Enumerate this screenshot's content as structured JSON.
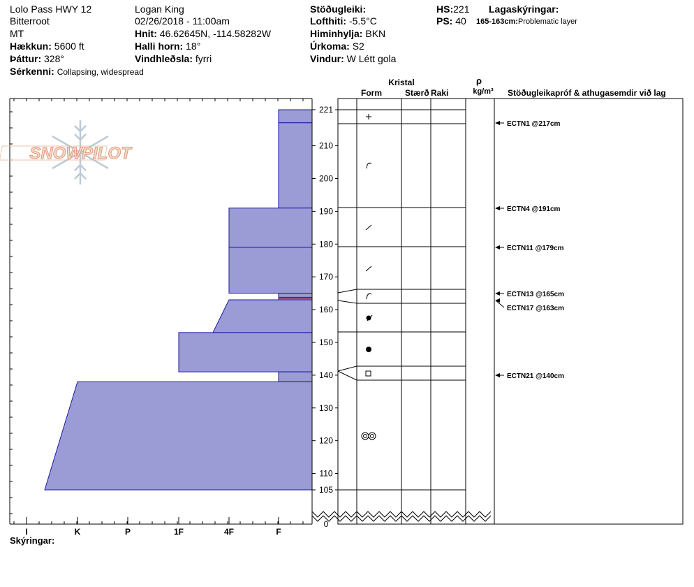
{
  "header": {
    "location": "Lolo Pass HWY 12",
    "range": "Bitterroot",
    "state": "MT",
    "elevation_label": "Hækkun:",
    "elevation_value": "5600 ft",
    "aspect_label": "Þáttur:",
    "aspect_value": "328°",
    "features_label": "Sérkenni:",
    "features_value": "Collapsing, widespread",
    "observer": "Logan King",
    "datetime": "02/26/2018 - 11:00am",
    "coords_label": "Hnit:",
    "coords_value": "46.62645N, -114.58282W",
    "slope_label": "Halli horn:",
    "slope_value": "18°",
    "wind_loading_label": "Vindhleðsla:",
    "wind_loading_value": "fyrri",
    "stability_label": "Stöðugleiki:",
    "stability_value": "",
    "air_temp_label": "Lofthiti:",
    "air_temp_value": "-5.5°C",
    "sky_label": "Himinhylja:",
    "sky_value": "BKN",
    "precip_label": "Úrkoma:",
    "precip_value": "S2",
    "wind_label": "Vindur:",
    "wind_value": "W Létt gola",
    "hs_label": "HS:",
    "hs_value": "221",
    "ps_label": "PS:",
    "ps_value": "40",
    "layer_notes_label": "Lagaskýringar:",
    "layer_note_range": "165-163cm:",
    "layer_note_text": "Problematic layer"
  },
  "logo": {
    "text": "SNOWPILOT"
  },
  "columns": {
    "crystal": "Kristal",
    "form": "Form",
    "size": "Stærð",
    "moisture": "Raki",
    "rho": "ρ",
    "density_unit": "kg/m³",
    "tests": "Stöðugleikapróf & athugasemdir við lag"
  },
  "footer": {
    "notes_label": "Skýringar:"
  },
  "colors": {
    "hardness_fill": "#9b9bd6",
    "hardness_stroke": "#1a1aa0",
    "problem_layer": "#8b1a3a"
  },
  "chart_data": {
    "type": "snow_profile",
    "hardness_axis": [
      "I",
      "K",
      "P",
      "1F",
      "4F",
      "F"
    ],
    "depth_ticks": [
      221,
      210,
      200,
      190,
      180,
      170,
      160,
      150,
      140,
      130,
      120,
      110,
      105,
      0
    ],
    "depth_range": [
      105,
      221
    ],
    "layers": [
      {
        "top": 221,
        "bottom": 217,
        "hardness_top": "F",
        "hardness_bottom": "F",
        "grain": "+"
      },
      {
        "top": 217,
        "bottom": 191,
        "hardness_top": "F",
        "hardness_bottom": "F",
        "grain": "precip-particles-decomposing"
      },
      {
        "top": 191,
        "bottom": 179,
        "hardness_top": "4F",
        "hardness_bottom": "4F",
        "grain": "slash"
      },
      {
        "top": 179,
        "bottom": 165,
        "hardness_top": "4F",
        "hardness_bottom": "4F",
        "grain": "slash"
      },
      {
        "top": 165,
        "bottom": 163,
        "hardness_top": "F",
        "hardness_bottom": "F",
        "grain": "precip-particles-decomposing"
      },
      {
        "top": 163,
        "bottom": 153,
        "hardness_top": "4F",
        "hardness_bottom": "4F-1F",
        "grain": "rounded-faceted"
      },
      {
        "top": 153,
        "bottom": 141,
        "hardness_top": "1F",
        "hardness_bottom": "1F",
        "grain": "rounded"
      },
      {
        "top": 141,
        "bottom": 138,
        "hardness_top": "F",
        "hardness_bottom": "F",
        "grain": "faceted"
      },
      {
        "top": 138,
        "bottom": 105,
        "hardness_top": "K",
        "hardness_bottom": "K+",
        "grain": "melt-forms"
      }
    ],
    "tests": [
      {
        "depth": 217,
        "label": "ECTN1 @217cm"
      },
      {
        "depth": 191,
        "label": "ECTN4 @191cm"
      },
      {
        "depth": 179,
        "label": "ECTN11 @179cm"
      },
      {
        "depth": 165,
        "label": "ECTN13 @165cm"
      },
      {
        "depth": 163,
        "label": "ECTN17 @163cm"
      },
      {
        "depth": 140,
        "label": "ECTN21 @140cm"
      }
    ]
  }
}
